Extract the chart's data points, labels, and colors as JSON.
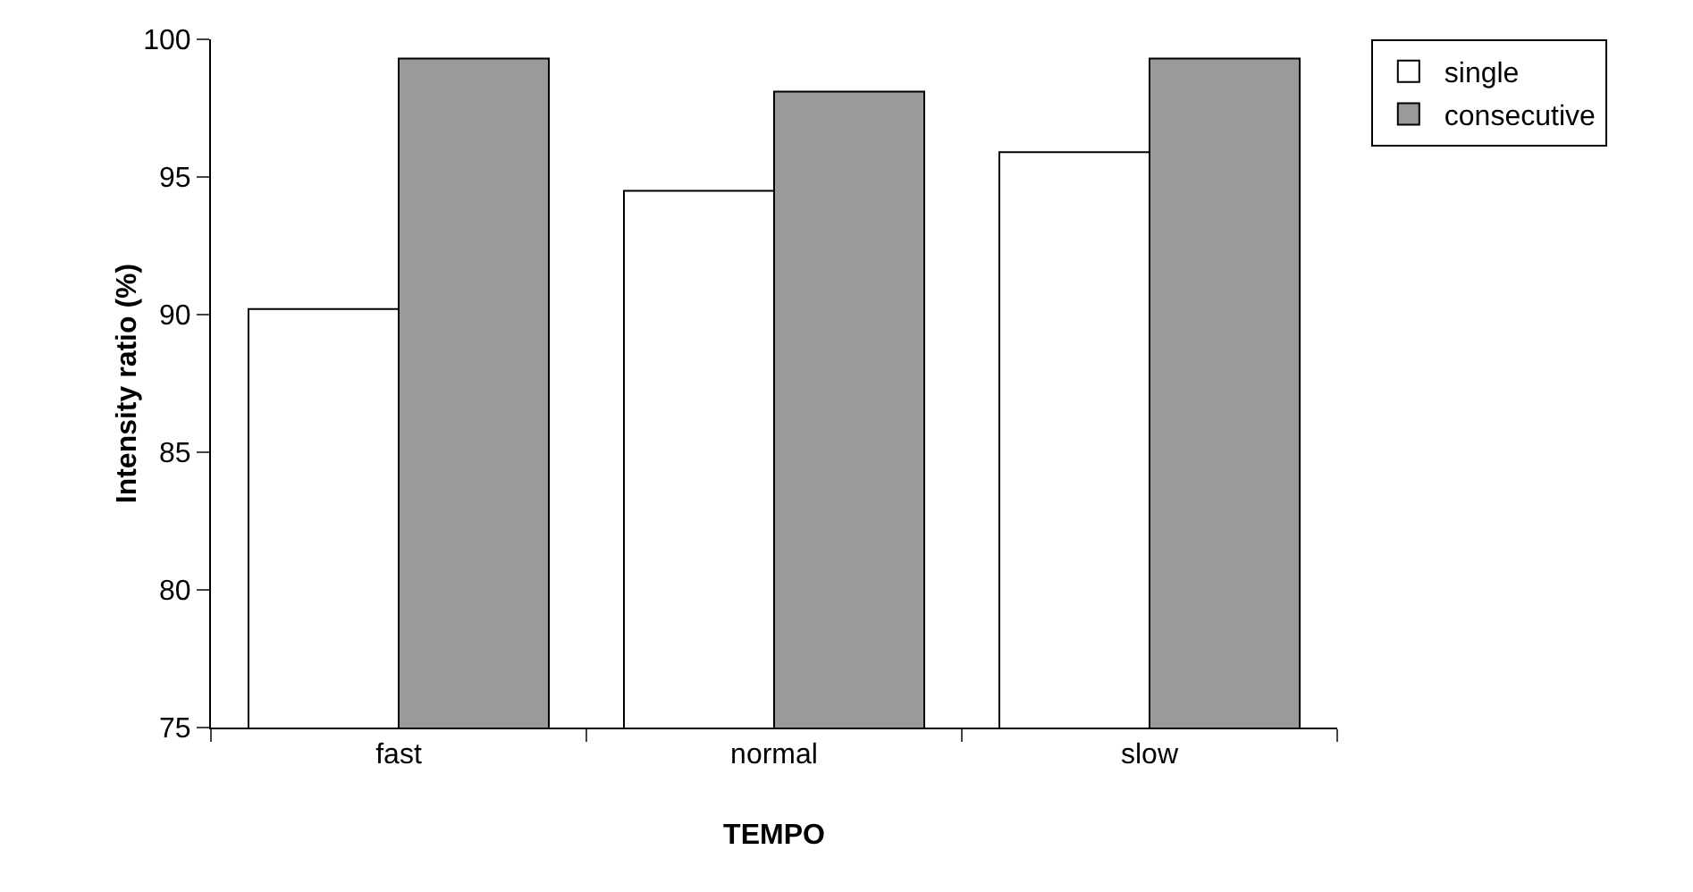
{
  "chart_data": {
    "type": "bar",
    "xlabel": "TEMPO",
    "ylabel": "Intensity ratio (%)",
    "categories": [
      "fast",
      "normal",
      "slow"
    ],
    "series": [
      {
        "name": "single",
        "color": "#ffffff",
        "values": [
          90.2,
          94.5,
          95.9
        ]
      },
      {
        "name": "consecutive",
        "color": "#9a9a9a",
        "values": [
          99.3,
          98.1,
          99.3
        ]
      }
    ],
    "ylim": [
      75,
      100
    ],
    "yticks": [
      75,
      80,
      85,
      90,
      95,
      100
    ],
    "grid": false,
    "legend": "top right"
  }
}
